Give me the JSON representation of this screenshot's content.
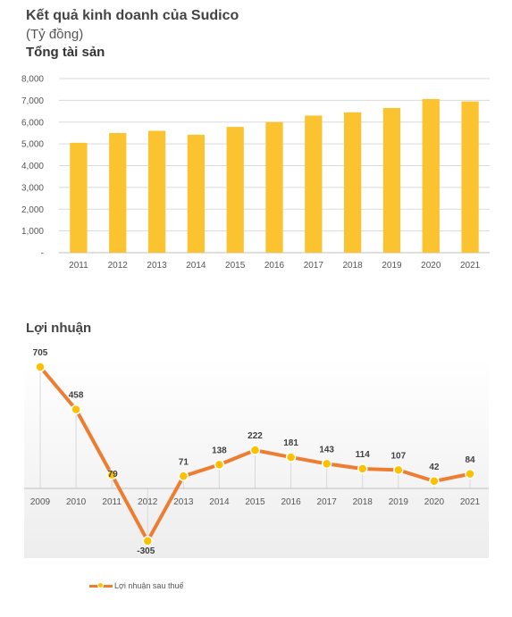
{
  "header": {
    "title": "Kết quả kinh doanh của Sudico",
    "unit": "(Tỷ đồng)"
  },
  "colors": {
    "bar": "#FCC331",
    "line": "#ED7D31",
    "marker": "#FFC000",
    "grid": "#D9D9D9"
  },
  "chart_data": [
    {
      "type": "bar",
      "title": "Tổng tài sản",
      "categories": [
        "2011",
        "2012",
        "2013",
        "2014",
        "2015",
        "2016",
        "2017",
        "2018",
        "2019",
        "2020",
        "2021"
      ],
      "values": [
        5050,
        5500,
        5600,
        5420,
        5780,
        6000,
        6300,
        6450,
        6650,
        7060,
        6950
      ],
      "ylim": [
        0,
        8000
      ],
      "yticks": [
        {
          "v": 0,
          "label": "-"
        },
        {
          "v": 1000,
          "label": "1,000"
        },
        {
          "v": 2000,
          "label": "2,000"
        },
        {
          "v": 3000,
          "label": "3,000"
        },
        {
          "v": 4000,
          "label": "4,000"
        },
        {
          "v": 5000,
          "label": "5,000"
        },
        {
          "v": 6000,
          "label": "6,000"
        },
        {
          "v": 7000,
          "label": "7,000"
        },
        {
          "v": 8000,
          "label": "8,000"
        }
      ],
      "grid": true
    },
    {
      "type": "line",
      "title": "Lợi nhuận",
      "categories": [
        "2009",
        "2010",
        "2011",
        "2012",
        "2013",
        "2014",
        "2015",
        "2016",
        "2017",
        "2018",
        "2019",
        "2020",
        "2021"
      ],
      "series": [
        {
          "name": "Lợi nhuận sau thuế",
          "values": [
            705,
            458,
            79,
            -305,
            71,
            138,
            222,
            181,
            143,
            114,
            107,
            42,
            84
          ],
          "labels": [
            "705",
            "458",
            "79",
            "-305",
            "71",
            "138",
            "222",
            "181",
            "143",
            "114",
            "107",
            "42",
            "84"
          ]
        }
      ],
      "legend": "bottom-left",
      "grid": false
    }
  ]
}
